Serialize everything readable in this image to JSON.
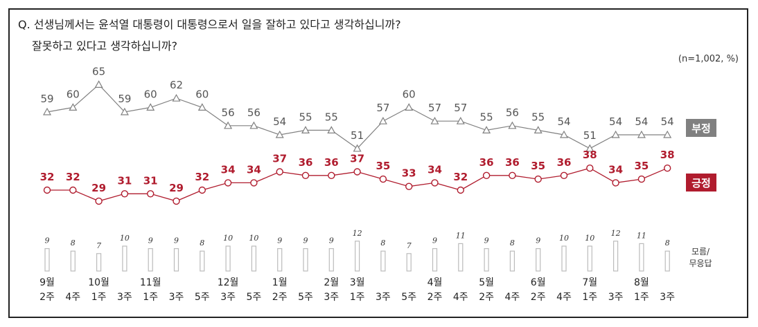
{
  "question": {
    "line1": "Q. 선생님께서는 윤석열 대통령이 대통령으로서 일을 잘하고 있다고 생각하십니까?",
    "line2": "잘못하고 있다고 생각하십니까?"
  },
  "unit_note": "(n=1,002,  %)",
  "colors": {
    "negative": "#808080",
    "positive": "#b01c2e",
    "dk": "#bbbbbb"
  },
  "chart_data": {
    "type": "line",
    "categories": [
      {
        "month": "9월",
        "week": "2주"
      },
      {
        "month": "",
        "week": "4주"
      },
      {
        "month": "10월",
        "week": "1주"
      },
      {
        "month": "",
        "week": "3주"
      },
      {
        "month": "11월",
        "week": "1주"
      },
      {
        "month": "",
        "week": "3주"
      },
      {
        "month": "",
        "week": "5주"
      },
      {
        "month": "12월",
        "week": "3주"
      },
      {
        "month": "",
        "week": "5주"
      },
      {
        "month": "1월",
        "week": "2주"
      },
      {
        "month": "",
        "week": "5주"
      },
      {
        "month": "2월",
        "week": "3주"
      },
      {
        "month": "3월",
        "week": "1주"
      },
      {
        "month": "",
        "week": "3주"
      },
      {
        "month": "",
        "week": "5주"
      },
      {
        "month": "4월",
        "week": "2주"
      },
      {
        "month": "",
        "week": "4주"
      },
      {
        "month": "5월",
        "week": "2주"
      },
      {
        "month": "",
        "week": "4주"
      },
      {
        "month": "6월",
        "week": "2주"
      },
      {
        "month": "",
        "week": "4주"
      },
      {
        "month": "7월",
        "week": "1주"
      },
      {
        "month": "",
        "week": "3주"
      },
      {
        "month": "8월",
        "week": "1주"
      },
      {
        "month": "",
        "week": "3주"
      }
    ],
    "series": [
      {
        "name": "부정",
        "marker": "triangle",
        "values": [
          59,
          60,
          65,
          59,
          60,
          62,
          60,
          56,
          56,
          54,
          55,
          55,
          51,
          57,
          60,
          57,
          57,
          55,
          56,
          55,
          54,
          51,
          54,
          54,
          54
        ]
      },
      {
        "name": "긍정",
        "marker": "circle",
        "values": [
          32,
          32,
          29,
          31,
          31,
          29,
          32,
          34,
          34,
          37,
          36,
          36,
          37,
          35,
          33,
          34,
          32,
          36,
          36,
          35,
          36,
          38,
          34,
          35,
          38
        ]
      },
      {
        "name": "모름/\n무응답",
        "marker": "bar",
        "values": [
          9,
          8,
          7,
          10,
          9,
          9,
          8,
          10,
          10,
          9,
          9,
          9,
          12,
          8,
          7,
          9,
          11,
          9,
          8,
          9,
          10,
          10,
          12,
          11,
          8
        ]
      }
    ],
    "legend": {
      "negative": "부정",
      "positive": "긍정",
      "dk_line1": "모름/",
      "dk_line2": "무응답"
    }
  }
}
